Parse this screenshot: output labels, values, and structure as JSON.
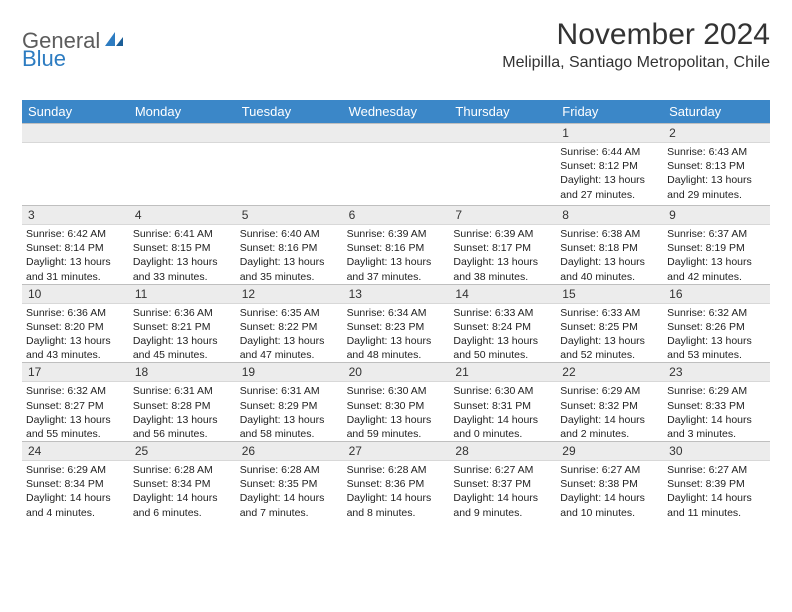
{
  "brand": {
    "part1": "General",
    "part2": "Blue"
  },
  "title": "November 2024",
  "location": "Melipilla, Santiago Metropolitan, Chile",
  "dayNames": [
    "Sunday",
    "Monday",
    "Tuesday",
    "Wednesday",
    "Thursday",
    "Friday",
    "Saturday"
  ],
  "colors": {
    "headerBar": "#3b87c8",
    "dayNumBar": "#ececec",
    "text": "#222222",
    "brandGray": "#5c5c5c",
    "brandBlue": "#2d7cc1"
  },
  "weeks": [
    [
      {
        "day": "",
        "sunrise": "",
        "sunset": "",
        "daylight": "",
        "empty": true
      },
      {
        "day": "",
        "sunrise": "",
        "sunset": "",
        "daylight": "",
        "empty": true
      },
      {
        "day": "",
        "sunrise": "",
        "sunset": "",
        "daylight": "",
        "empty": true
      },
      {
        "day": "",
        "sunrise": "",
        "sunset": "",
        "daylight": "",
        "empty": true
      },
      {
        "day": "",
        "sunrise": "",
        "sunset": "",
        "daylight": "",
        "empty": true
      },
      {
        "day": "1",
        "sunrise": "Sunrise: 6:44 AM",
        "sunset": "Sunset: 8:12 PM",
        "daylight": "Daylight: 13 hours and 27 minutes."
      },
      {
        "day": "2",
        "sunrise": "Sunrise: 6:43 AM",
        "sunset": "Sunset: 8:13 PM",
        "daylight": "Daylight: 13 hours and 29 minutes."
      }
    ],
    [
      {
        "day": "3",
        "sunrise": "Sunrise: 6:42 AM",
        "sunset": "Sunset: 8:14 PM",
        "daylight": "Daylight: 13 hours and 31 minutes."
      },
      {
        "day": "4",
        "sunrise": "Sunrise: 6:41 AM",
        "sunset": "Sunset: 8:15 PM",
        "daylight": "Daylight: 13 hours and 33 minutes."
      },
      {
        "day": "5",
        "sunrise": "Sunrise: 6:40 AM",
        "sunset": "Sunset: 8:16 PM",
        "daylight": "Daylight: 13 hours and 35 minutes."
      },
      {
        "day": "6",
        "sunrise": "Sunrise: 6:39 AM",
        "sunset": "Sunset: 8:16 PM",
        "daylight": "Daylight: 13 hours and 37 minutes."
      },
      {
        "day": "7",
        "sunrise": "Sunrise: 6:39 AM",
        "sunset": "Sunset: 8:17 PM",
        "daylight": "Daylight: 13 hours and 38 minutes."
      },
      {
        "day": "8",
        "sunrise": "Sunrise: 6:38 AM",
        "sunset": "Sunset: 8:18 PM",
        "daylight": "Daylight: 13 hours and 40 minutes."
      },
      {
        "day": "9",
        "sunrise": "Sunrise: 6:37 AM",
        "sunset": "Sunset: 8:19 PM",
        "daylight": "Daylight: 13 hours and 42 minutes."
      }
    ],
    [
      {
        "day": "10",
        "sunrise": "Sunrise: 6:36 AM",
        "sunset": "Sunset: 8:20 PM",
        "daylight": "Daylight: 13 hours and 43 minutes."
      },
      {
        "day": "11",
        "sunrise": "Sunrise: 6:36 AM",
        "sunset": "Sunset: 8:21 PM",
        "daylight": "Daylight: 13 hours and 45 minutes."
      },
      {
        "day": "12",
        "sunrise": "Sunrise: 6:35 AM",
        "sunset": "Sunset: 8:22 PM",
        "daylight": "Daylight: 13 hours and 47 minutes."
      },
      {
        "day": "13",
        "sunrise": "Sunrise: 6:34 AM",
        "sunset": "Sunset: 8:23 PM",
        "daylight": "Daylight: 13 hours and 48 minutes."
      },
      {
        "day": "14",
        "sunrise": "Sunrise: 6:33 AM",
        "sunset": "Sunset: 8:24 PM",
        "daylight": "Daylight: 13 hours and 50 minutes."
      },
      {
        "day": "15",
        "sunrise": "Sunrise: 6:33 AM",
        "sunset": "Sunset: 8:25 PM",
        "daylight": "Daylight: 13 hours and 52 minutes."
      },
      {
        "day": "16",
        "sunrise": "Sunrise: 6:32 AM",
        "sunset": "Sunset: 8:26 PM",
        "daylight": "Daylight: 13 hours and 53 minutes."
      }
    ],
    [
      {
        "day": "17",
        "sunrise": "Sunrise: 6:32 AM",
        "sunset": "Sunset: 8:27 PM",
        "daylight": "Daylight: 13 hours and 55 minutes."
      },
      {
        "day": "18",
        "sunrise": "Sunrise: 6:31 AM",
        "sunset": "Sunset: 8:28 PM",
        "daylight": "Daylight: 13 hours and 56 minutes."
      },
      {
        "day": "19",
        "sunrise": "Sunrise: 6:31 AM",
        "sunset": "Sunset: 8:29 PM",
        "daylight": "Daylight: 13 hours and 58 minutes."
      },
      {
        "day": "20",
        "sunrise": "Sunrise: 6:30 AM",
        "sunset": "Sunset: 8:30 PM",
        "daylight": "Daylight: 13 hours and 59 minutes."
      },
      {
        "day": "21",
        "sunrise": "Sunrise: 6:30 AM",
        "sunset": "Sunset: 8:31 PM",
        "daylight": "Daylight: 14 hours and 0 minutes."
      },
      {
        "day": "22",
        "sunrise": "Sunrise: 6:29 AM",
        "sunset": "Sunset: 8:32 PM",
        "daylight": "Daylight: 14 hours and 2 minutes."
      },
      {
        "day": "23",
        "sunrise": "Sunrise: 6:29 AM",
        "sunset": "Sunset: 8:33 PM",
        "daylight": "Daylight: 14 hours and 3 minutes."
      }
    ],
    [
      {
        "day": "24",
        "sunrise": "Sunrise: 6:29 AM",
        "sunset": "Sunset: 8:34 PM",
        "daylight": "Daylight: 14 hours and 4 minutes."
      },
      {
        "day": "25",
        "sunrise": "Sunrise: 6:28 AM",
        "sunset": "Sunset: 8:34 PM",
        "daylight": "Daylight: 14 hours and 6 minutes."
      },
      {
        "day": "26",
        "sunrise": "Sunrise: 6:28 AM",
        "sunset": "Sunset: 8:35 PM",
        "daylight": "Daylight: 14 hours and 7 minutes."
      },
      {
        "day": "27",
        "sunrise": "Sunrise: 6:28 AM",
        "sunset": "Sunset: 8:36 PM",
        "daylight": "Daylight: 14 hours and 8 minutes."
      },
      {
        "day": "28",
        "sunrise": "Sunrise: 6:27 AM",
        "sunset": "Sunset: 8:37 PM",
        "daylight": "Daylight: 14 hours and 9 minutes."
      },
      {
        "day": "29",
        "sunrise": "Sunrise: 6:27 AM",
        "sunset": "Sunset: 8:38 PM",
        "daylight": "Daylight: 14 hours and 10 minutes."
      },
      {
        "day": "30",
        "sunrise": "Sunrise: 6:27 AM",
        "sunset": "Sunset: 8:39 PM",
        "daylight": "Daylight: 14 hours and 11 minutes."
      }
    ]
  ]
}
